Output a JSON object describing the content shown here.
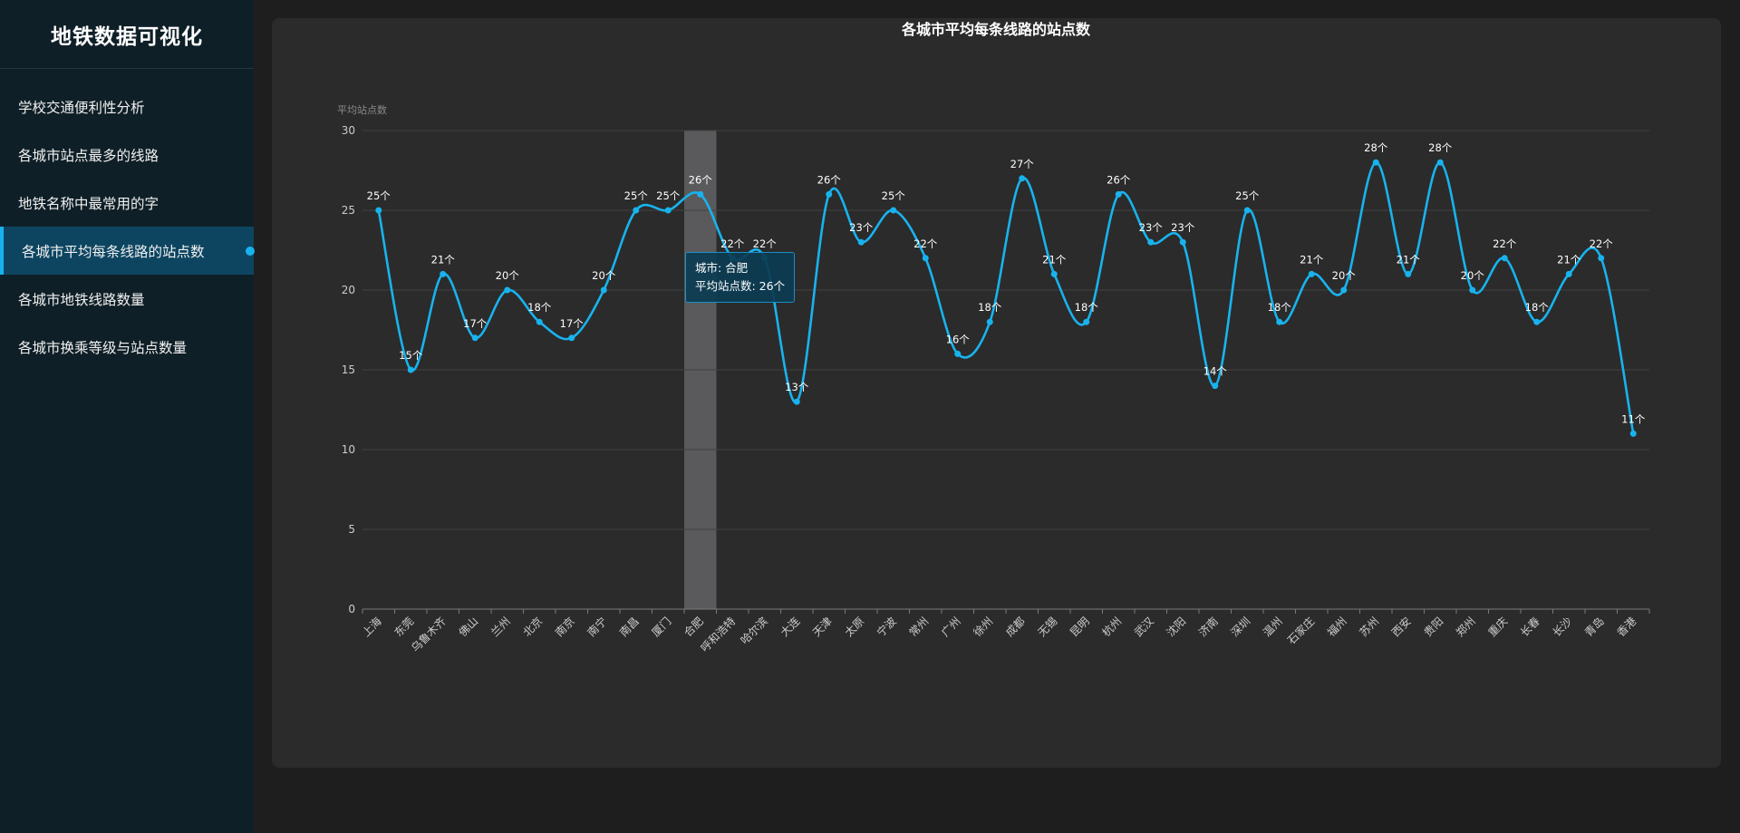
{
  "app": {
    "title": "地铁数据可视化"
  },
  "sidebar": {
    "items": [
      {
        "label": "学校交通便利性分析",
        "active": false
      },
      {
        "label": "各城市站点最多的线路",
        "active": false
      },
      {
        "label": "地铁名称中最常用的字",
        "active": false
      },
      {
        "label": "各城市平均每条线路的站点数",
        "active": true
      },
      {
        "label": "各城市地铁线路数量",
        "active": false
      },
      {
        "label": "各城市换乘等级与站点数量",
        "active": false
      }
    ]
  },
  "colors": {
    "line": "#18b3ee",
    "active_bg": "#0d4561",
    "sidebar_bg": "#0f1f27",
    "panel_bg": "#2b2b2b"
  },
  "chart_data": {
    "type": "line",
    "title": "各城市平均每条线路的站点数",
    "ylabel": "平均站点数",
    "ylim": [
      0,
      30
    ],
    "yticks": [
      0,
      5,
      10,
      15,
      20,
      25,
      30
    ],
    "smooth": true,
    "grid": true,
    "label_suffix": "个",
    "categories": [
      "上海",
      "东莞",
      "乌鲁木齐",
      "佛山",
      "兰州",
      "北京",
      "南京",
      "南宁",
      "南昌",
      "厦门",
      "合肥",
      "呼和浩特",
      "哈尔滨",
      "大连",
      "天津",
      "太原",
      "宁波",
      "常州",
      "广州",
      "徐州",
      "成都",
      "无锡",
      "昆明",
      "杭州",
      "武汉",
      "沈阳",
      "济南",
      "深圳",
      "温州",
      "石家庄",
      "福州",
      "苏州",
      "西安",
      "贵阳",
      "郑州",
      "重庆",
      "长春",
      "长沙",
      "青岛",
      "香港"
    ],
    "values": [
      25,
      15,
      21,
      17,
      20,
      18,
      17,
      20,
      25,
      25,
      26,
      22,
      22,
      13,
      26,
      23,
      25,
      22,
      16,
      18,
      27,
      21,
      18,
      26,
      23,
      23,
      14,
      25,
      18,
      21,
      20,
      28,
      21,
      28,
      20,
      22,
      18,
      21,
      22,
      11
    ],
    "highlight_index": 10,
    "tooltip": {
      "line1": "城市: 合肥",
      "line2": "平均站点数: 26个"
    }
  }
}
